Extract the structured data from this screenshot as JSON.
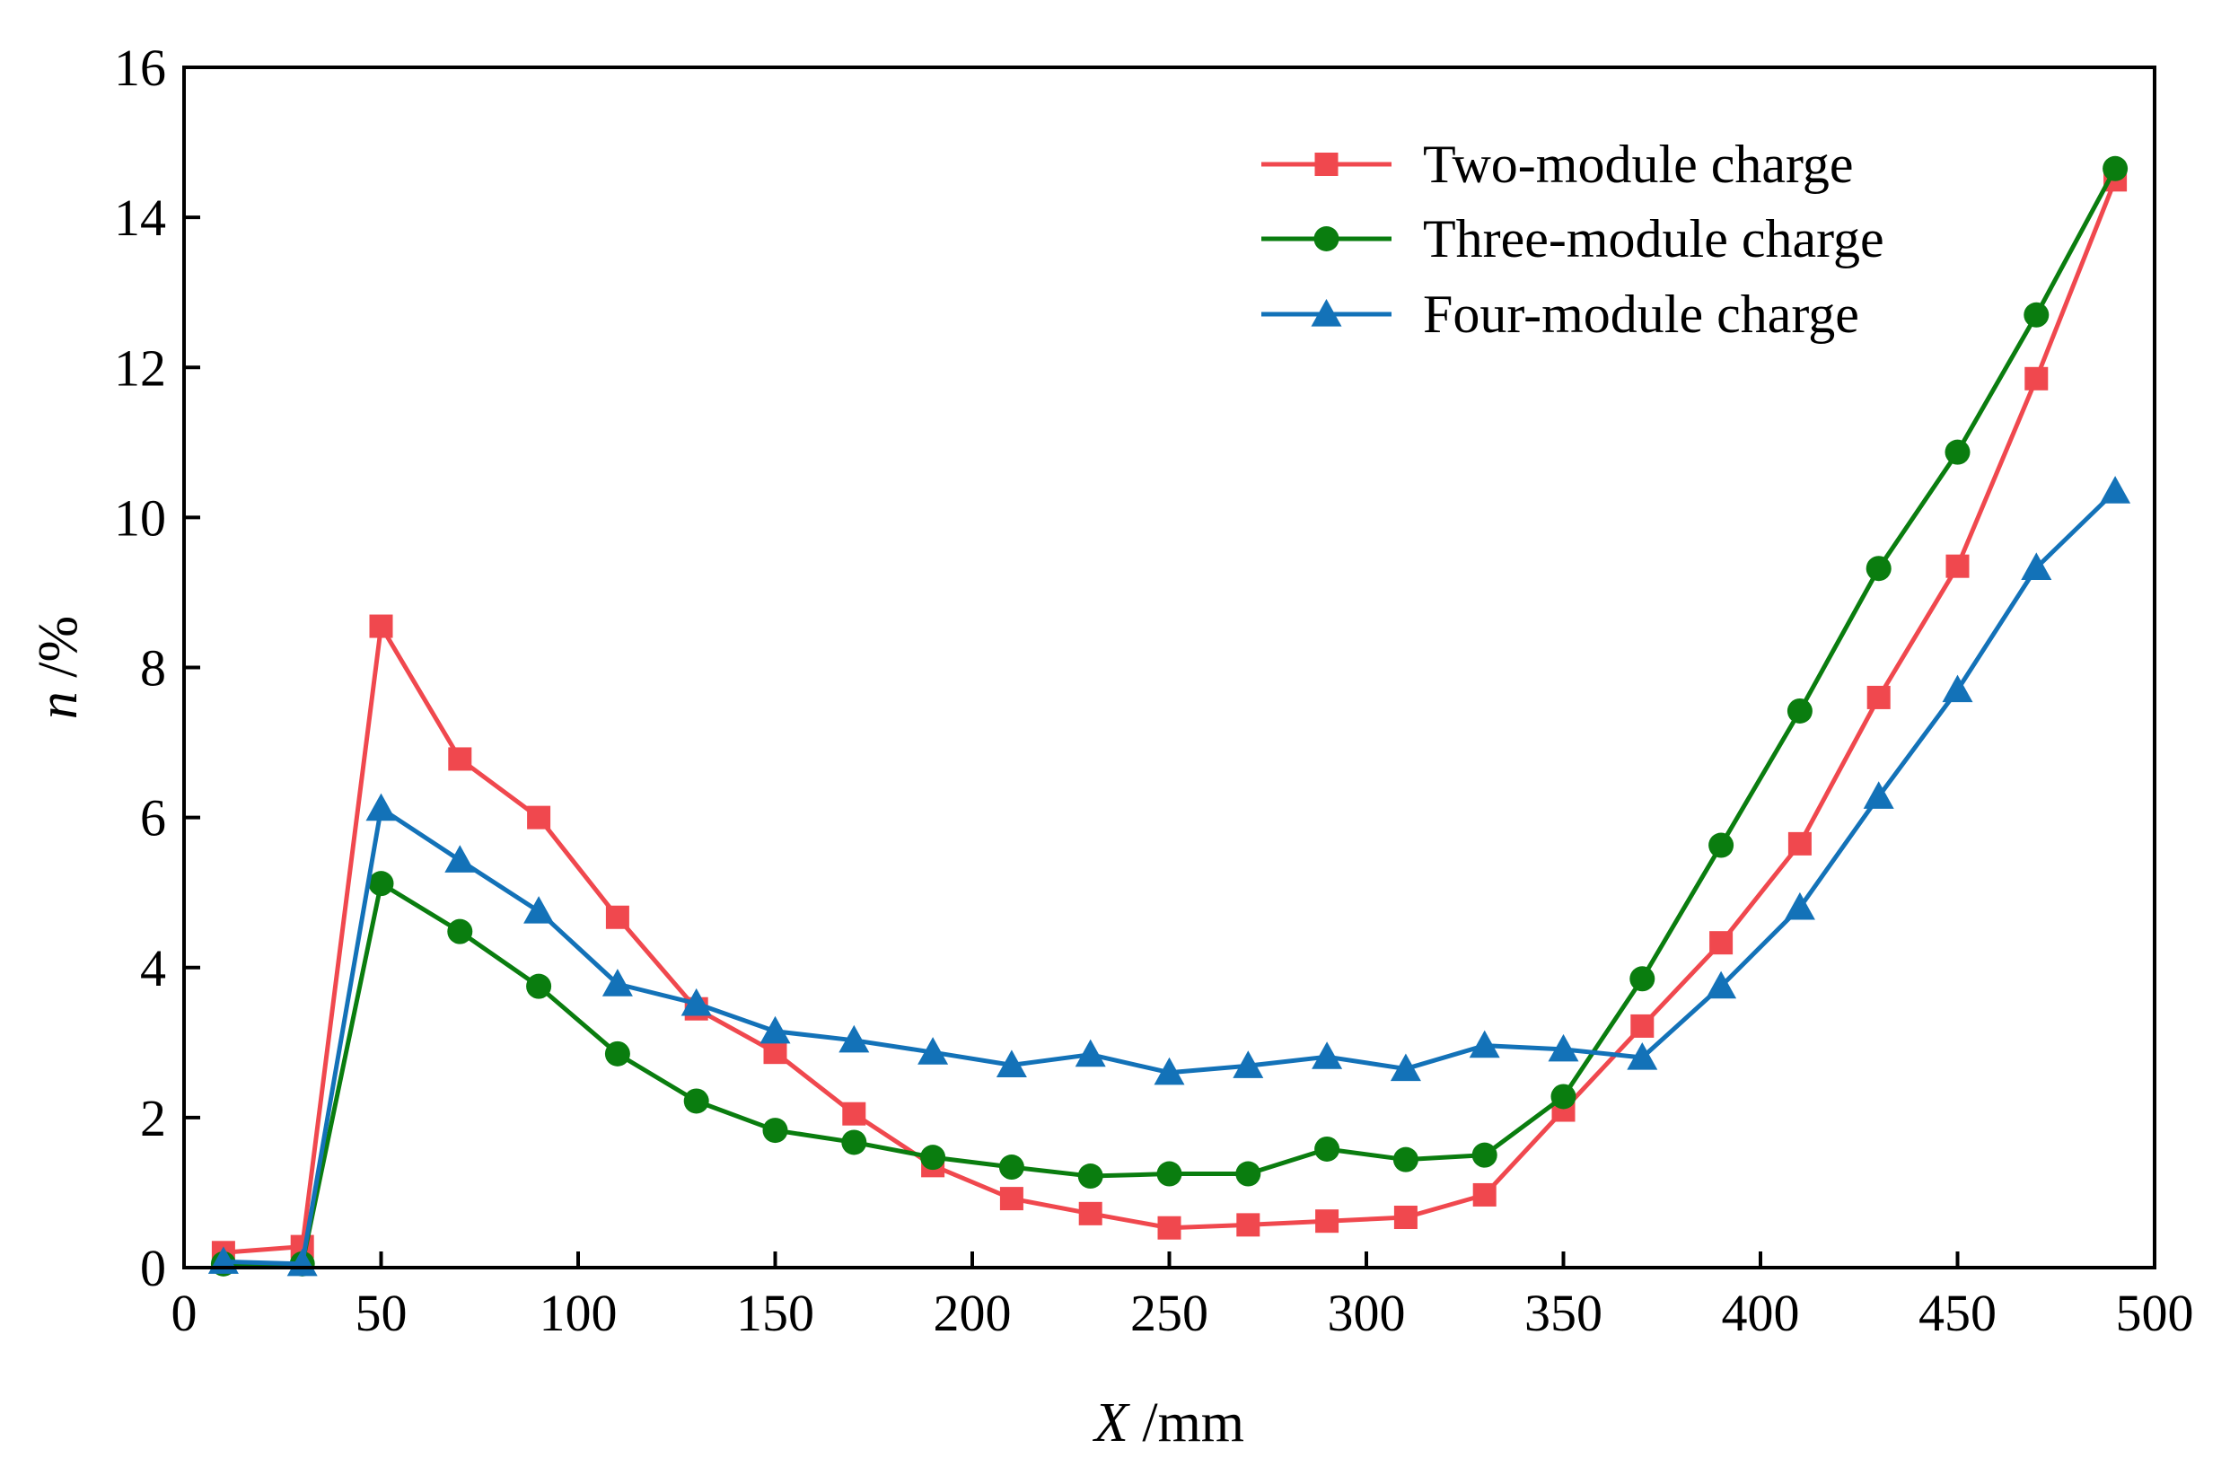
{
  "chart_data": {
    "type": "line",
    "xlabel": {
      "var": "X",
      "unit": " /mm"
    },
    "ylabel": {
      "var": "n",
      "unit": " /%"
    },
    "xlim": [
      0,
      500
    ],
    "ylim": [
      0,
      16
    ],
    "xticks": [
      0,
      50,
      100,
      150,
      200,
      250,
      300,
      350,
      400,
      450,
      500
    ],
    "yticks": [
      0,
      2,
      4,
      6,
      8,
      10,
      12,
      14,
      16
    ],
    "grid": false,
    "legend_position": "top-right",
    "x": [
      10,
      30,
      50,
      70,
      90,
      110,
      130,
      150,
      170,
      190,
      210,
      230,
      250,
      270,
      290,
      310,
      330,
      350,
      370,
      390,
      410,
      430,
      450,
      470,
      490
    ],
    "series": [
      {
        "name": "Two-module charge",
        "color": "#f0484e",
        "marker": "square",
        "values": [
          0.2,
          0.28,
          8.55,
          6.78,
          6.0,
          4.67,
          3.45,
          2.87,
          2.05,
          1.36,
          0.92,
          0.72,
          0.53,
          0.57,
          0.62,
          0.67,
          0.97,
          2.1,
          3.22,
          4.33,
          5.65,
          7.6,
          9.35,
          11.85,
          14.5
        ]
      },
      {
        "name": "Three-module charge",
        "color": "#0a7d0f",
        "marker": "circle",
        "values": [
          0.05,
          0.05,
          5.12,
          4.48,
          3.75,
          2.85,
          2.22,
          1.83,
          1.67,
          1.47,
          1.34,
          1.22,
          1.25,
          1.25,
          1.58,
          1.44,
          1.5,
          2.28,
          3.85,
          5.63,
          7.42,
          9.32,
          10.87,
          12.7,
          14.65
        ]
      },
      {
        "name": "Four-module charge",
        "color": "#1372b8",
        "marker": "triangle",
        "values": [
          0.08,
          0.05,
          6.12,
          5.43,
          4.75,
          3.78,
          3.52,
          3.15,
          3.03,
          2.87,
          2.7,
          2.84,
          2.6,
          2.69,
          2.81,
          2.65,
          2.96,
          2.91,
          2.8,
          3.75,
          4.8,
          6.28,
          7.7,
          9.33,
          10.35
        ]
      }
    ]
  }
}
